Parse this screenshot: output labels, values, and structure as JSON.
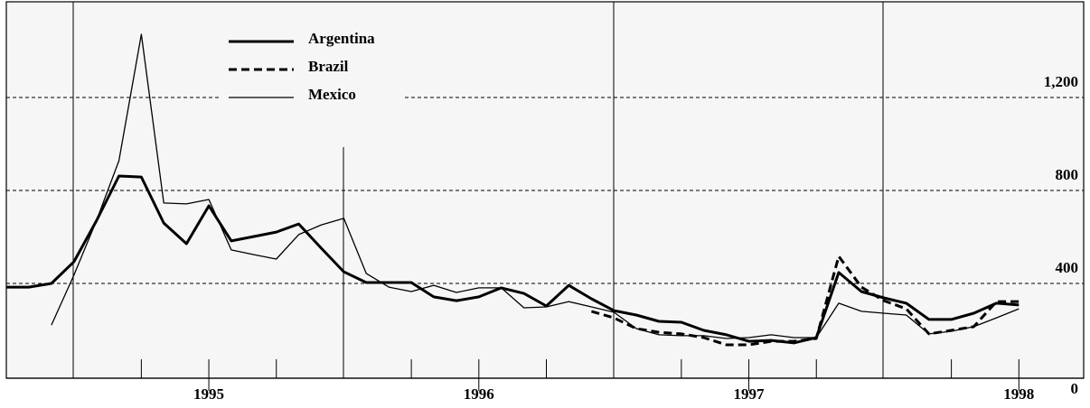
{
  "chart_data": {
    "type": "line",
    "x": [
      1994.25,
      1994.333,
      1994.417,
      1994.5,
      1994.583,
      1994.667,
      1994.75,
      1994.833,
      1994.917,
      1995,
      1995.083,
      1995.167,
      1995.25,
      1995.333,
      1995.417,
      1995.5,
      1995.583,
      1995.667,
      1995.75,
      1995.833,
      1995.917,
      1996,
      1996.083,
      1996.167,
      1996.25,
      1996.333,
      1996.417,
      1996.5,
      1996.583,
      1996.667,
      1996.75,
      1996.833,
      1996.917,
      1997,
      1997.083,
      1997.167,
      1997.25,
      1997.333,
      1997.417,
      1997.5,
      1997.583,
      1997.667,
      1997.75,
      1997.833,
      1997.917,
      1998
    ],
    "series": [
      {
        "name": "Argentina",
        "color": "#000000",
        "style": "thick",
        "values": [
          384,
          384,
          400,
          493,
          668,
          862,
          858,
          660,
          571,
          734,
          583,
          602,
          621,
          656,
          551,
          450,
          404,
          404,
          404,
          342,
          326,
          342,
          381,
          357,
          303,
          392,
          334,
          283,
          264,
          237,
          233,
          198,
          179,
          151,
          155,
          144,
          167,
          447,
          365,
          338,
          315,
          245,
          245,
          272,
          315,
          307
        ]
      },
      {
        "name": "Brazil",
        "color": "#000000",
        "style": "dashed",
        "values": [
          null,
          null,
          null,
          null,
          null,
          null,
          null,
          null,
          null,
          null,
          null,
          null,
          null,
          null,
          null,
          null,
          null,
          null,
          null,
          null,
          null,
          null,
          null,
          null,
          null,
          null,
          280,
          252,
          206,
          190,
          183,
          167,
          136,
          136,
          151,
          151,
          163,
          517,
          384,
          326,
          291,
          183,
          198,
          214,
          322,
          322
        ]
      },
      {
        "name": "Mexico",
        "color": "#000000",
        "style": "thin",
        "values": [
          null,
          null,
          221,
          435,
          668,
          928,
          1472,
          746,
          742,
          761,
          544,
          524,
          505,
          610,
          652,
          680,
          443,
          384,
          365,
          392,
          361,
          381,
          381,
          295,
          299,
          322,
          299,
          276,
          206,
          179,
          175,
          175,
          163,
          167,
          179,
          167,
          167,
          315,
          280,
          272,
          264,
          183,
          194,
          214,
          252,
          291
        ]
      }
    ],
    "xlim": [
      1994.25,
      1998.24
    ],
    "xticks": [
      1995,
      1996,
      1997,
      1998
    ],
    "ylim": [
      0,
      1600
    ],
    "yticks": [
      0,
      400,
      800,
      {
        "value": 1200,
        "label": "1,200"
      }
    ],
    "grid": true,
    "legend": "upper-left"
  }
}
